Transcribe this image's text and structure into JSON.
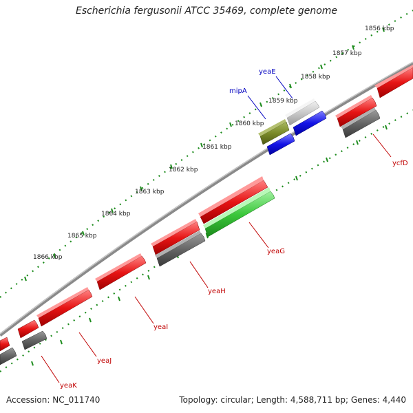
{
  "title": "Escherichia fergusonii ATCC 35469, complete genome",
  "footer": {
    "accession": "Accession: NC_011740",
    "summary": "Topology: circular; Length: 4,588,711 bp; Genes: 4,440"
  },
  "ticks": [
    "1856 kbp",
    "1857 kbp",
    "1858 kbp",
    "1859 kbp",
    "1860 kbp",
    "1861 kbp",
    "1862 kbp",
    "1863 kbp",
    "1864 kbp",
    "1865 kbp",
    "1866 kbp"
  ],
  "labels": {
    "yeaE": "yeaE",
    "mipA": "mipA",
    "ycfD": "ycfD",
    "yeaG": "yeaG",
    "yeaH": "yeaH",
    "yeaI": "yeaI",
    "yeaJ": "yeaJ",
    "yeaK": "yeaK"
  },
  "colors": {
    "cds": "#e61414",
    "gene": "#646464",
    "misc": "#7a8a28",
    "other": "#c8c8c8",
    "rna": "#1414e6",
    "highlight": "#3cc83c",
    "tick": "#1e8c1e",
    "forward_label": "#0000c0",
    "reverse_label": "#c00000"
  }
}
